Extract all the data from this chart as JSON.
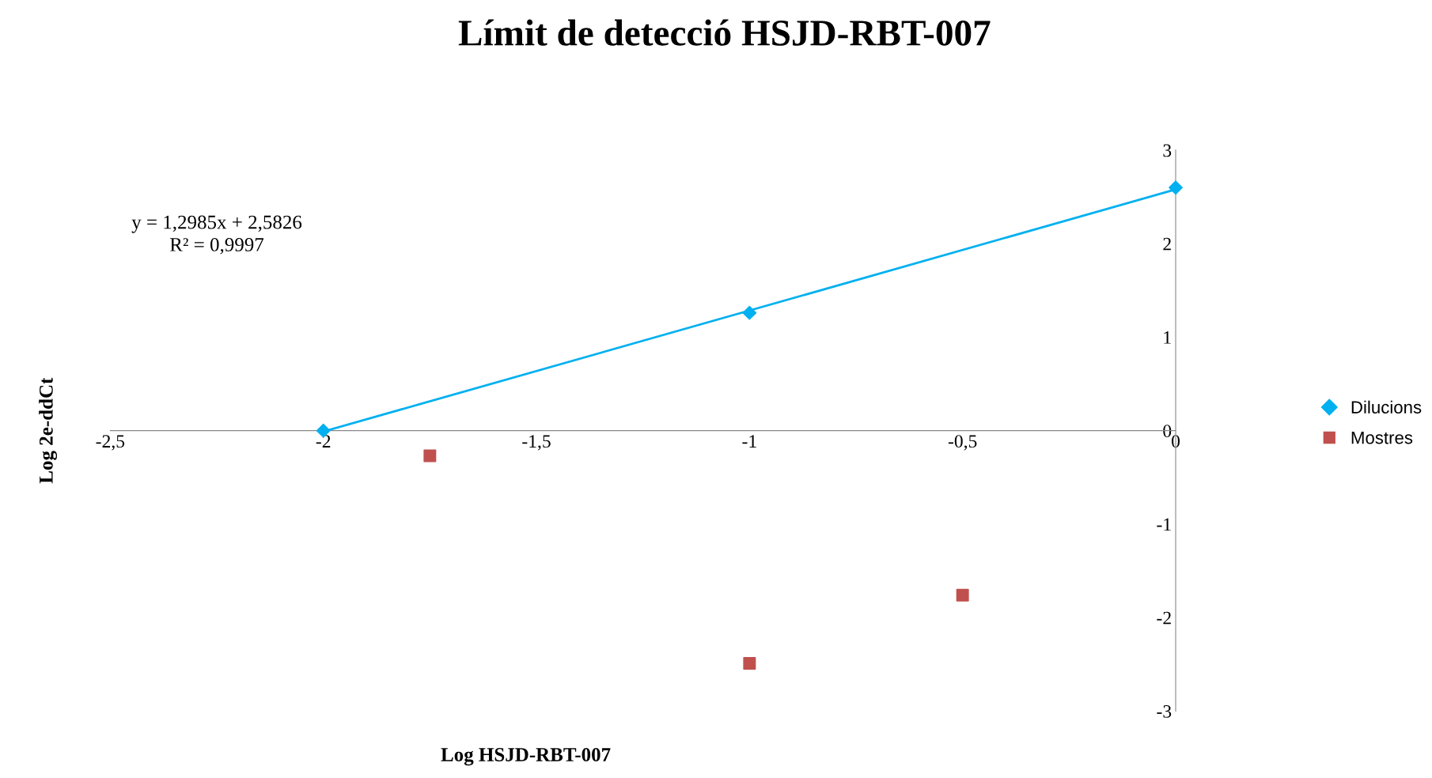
{
  "chart_data": {
    "type": "scatter",
    "title": "Límit de detecció HSJD-RBT-007",
    "xlabel": "Log HSJD-RBT-007",
    "ylabel": "Log 2e-ddCt",
    "series": [
      {
        "name": "Dilucions",
        "color": "#00b0f0",
        "marker": "diamond",
        "x": [
          -2,
          -1,
          0
        ],
        "values": [
          0.0,
          1.26,
          2.6
        ]
      },
      {
        "name": "Mostres",
        "color": "#c0504d",
        "marker": "square",
        "x": [
          -1.75,
          -1,
          -0.5
        ],
        "values": [
          -0.27,
          -2.49,
          -1.76
        ]
      },
      {
        "type": "line",
        "color": "#00b0f0",
        "marker": "none",
        "x": [
          -2,
          0
        ],
        "values": [
          -0.01,
          2.58
        ]
      }
    ],
    "annotations": [
      "y = 1,2985x + 2,5826",
      "R² = 0,9997"
    ],
    "xlim": [
      -2.5,
      0
    ],
    "xticks": [
      {
        "value": -2.5,
        "label": "-2,5"
      },
      -2,
      {
        "value": -1.5,
        "label": "-1,5"
      },
      -1,
      {
        "value": -0.5,
        "label": "-0,5"
      },
      0
    ],
    "ylim": [
      -3,
      3
    ],
    "yticks": [
      -3,
      -2,
      -1,
      0,
      1,
      2,
      3
    ],
    "grid": false,
    "legend": "right"
  }
}
